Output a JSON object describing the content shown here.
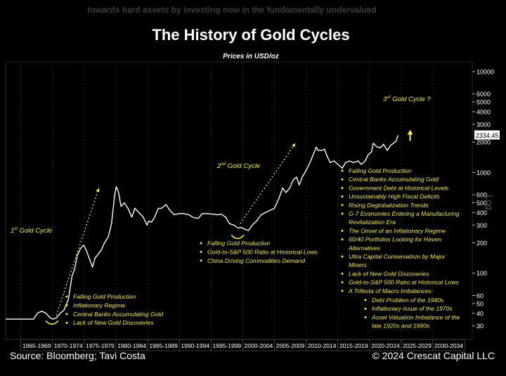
{
  "header": {
    "faded_caption": "towards hard assets by investing now in the fundamentally undervalued",
    "title": "The History of Gold Cycles",
    "subtitle": "Prices in USD/oz"
  },
  "footer": {
    "source": "Source: Bloomberg; Tavi Costa",
    "copyright": "© 2024 Crescat Capital LLC"
  },
  "chart_data": {
    "type": "line",
    "title": "The History of Gold Cycles",
    "ylabel": "Log",
    "yscale": "log",
    "ylim": [
      22,
      12500
    ],
    "xlim": [
      1962.6,
      2036.2
    ],
    "y_ticks": [
      10000,
      6000,
      5000,
      4000,
      3000,
      2000,
      1000,
      600,
      500,
      400,
      300,
      200,
      100,
      60,
      50,
      40,
      30
    ],
    "x_categories": [
      "1965-1969",
      "1970-1974",
      "1975-1979",
      "1980-1984",
      "1985-1989",
      "1990-1994",
      "1995-1999",
      "2000-2004",
      "2005-2009",
      "2010-2014",
      "2015-2019",
      "2020-2024",
      "2025-2029",
      "2030-2034"
    ],
    "last_value_label": "2334.45",
    "series": [
      {
        "color": "#ffffff",
        "x": [
          1962.6,
          1967.0,
          1967.6,
          1968.3,
          1969.0,
          1969.6,
          1970.1,
          1970.6,
          1971.2,
          1971.8,
          1972.5,
          1973.1,
          1973.5,
          1973.9,
          1974.4,
          1974.9,
          1975.3,
          1975.8,
          1976.3,
          1976.7,
          1977.2,
          1977.7,
          1978.2,
          1978.8,
          1979.3,
          1979.8,
          1980.05,
          1980.4,
          1980.8,
          1981.3,
          1981.9,
          1982.5,
          1983.0,
          1983.6,
          1984.3,
          1984.9,
          1985.2,
          1985.6,
          1986.1,
          1986.7,
          1987.2,
          1987.9,
          1988.5,
          1989.2,
          1989.9,
          1990.7,
          1991.5,
          1992.3,
          1993.0,
          1993.6,
          1994.4,
          1995.2,
          1996.0,
          1996.6,
          1997.3,
          1997.9,
          1998.6,
          1999.3,
          1999.75,
          2000.2,
          2000.9,
          2001.5,
          2002.2,
          2002.9,
          2003.6,
          2004.3,
          2005.0,
          2005.7,
          2006.3,
          2006.8,
          2007.4,
          2008.0,
          2008.5,
          2008.9,
          2009.4,
          2010.0,
          2010.6,
          2011.2,
          2011.6,
          2011.9,
          2012.4,
          2012.9,
          2013.3,
          2013.8,
          2014.4,
          2015.0,
          2015.7,
          2016.2,
          2016.8,
          2017.5,
          2018.2,
          2018.7,
          2019.3,
          2019.8,
          2020.3,
          2020.6,
          2021.1,
          2021.7,
          2022.2,
          2022.8,
          2023.3,
          2023.8,
          2024.2,
          2024.5
        ],
        "y": [
          35,
          35,
          40,
          42,
          40,
          36,
          35,
          36,
          40,
          43,
          55,
          95,
          110,
          150,
          175,
          190,
          170,
          140,
          115,
          140,
          155,
          170,
          200,
          230,
          310,
          600,
          720,
          640,
          460,
          500,
          440,
          360,
          440,
          400,
          360,
          300,
          330,
          320,
          360,
          440,
          440,
          480,
          420,
          380,
          390,
          390,
          380,
          355,
          350,
          390,
          390,
          385,
          380,
          385,
          360,
          310,
          300,
          280,
          285,
          275,
          265,
          300,
          330,
          380,
          400,
          420,
          440,
          550,
          700,
          630,
          700,
          850,
          900,
          750,
          900,
          1050,
          1250,
          1550,
          1780,
          1650,
          1650,
          1700,
          1450,
          1250,
          1300,
          1200,
          1100,
          1250,
          1300,
          1250,
          1300,
          1200,
          1300,
          1500,
          1600,
          1950,
          1800,
          1750,
          1900,
          1650,
          1850,
          1950,
          2050,
          2334
        ]
      }
    ],
    "cycle_labels": [
      "1",
      "Gold Cycle",
      "2",
      "Gold Cycle",
      "3",
      "Gold Cycle ?"
    ],
    "annotations": {
      "cycle1": [
        "Falling Gold Production",
        "Inflationary Regime",
        "Central Banks Accumulating Gold",
        "Lack of New Gold Discoveries"
      ],
      "cycle2": [
        "Falling Gold Production",
        "Gold-to-S&P 500 Ratio at Historical Lows",
        "China Driving Commodities Demand"
      ],
      "cycle3": [
        "Falling Gold Production",
        "Central Banks Accumulating Gold",
        "Government Debt at Historical Levels",
        "Unsustainably High Fiscal Deficits",
        "Rising Deglobalization Trends",
        "G-7 Economies Entering a Manufacturing Revitalization Era",
        "The Onset of an Inflationary Regime",
        "60/40 Portfolios Looking for Haven Alternatives",
        "Ultra Capital Conservatism by Major Miners",
        "Lack of New Gold Discoveries",
        "Gold-to-S&P 500 Ratio at Historical Lows",
        "A Trifecta of Macro Imbalances:"
      ],
      "cycle3_sub": [
        "Debt Problem of the 1940s",
        "Inflationary Issue of the 1970s",
        "Asset Valuation Imbalance of the late 1920s and 1990s"
      ]
    },
    "colors": {
      "accent": "#f5e84a",
      "line": "#ffffff",
      "grid": "#3a3a3a",
      "background": "#000000"
    }
  }
}
